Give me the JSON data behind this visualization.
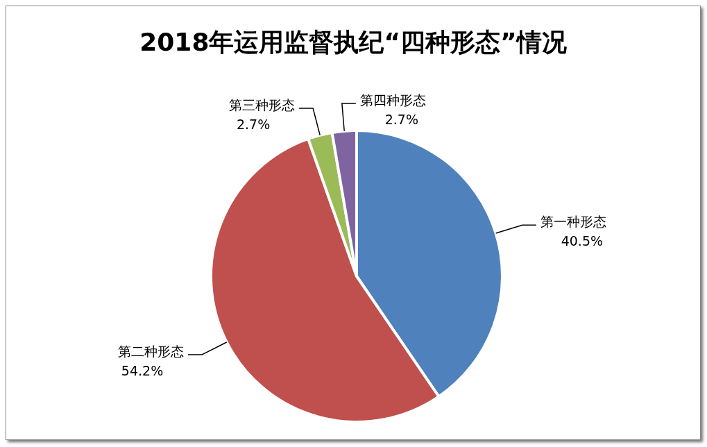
{
  "chart_data": {
    "type": "pie",
    "title": "2018年运用监督执纪“四种形态”情况",
    "categories": [
      "第一种形态",
      "第二种形态",
      "第三种形态",
      "第四种形态"
    ],
    "values": [
      40.5,
      54.2,
      2.7,
      2.7
    ],
    "value_labels": [
      "40.5%",
      "54.2%",
      "2.7%",
      "2.7%"
    ],
    "colors": [
      "#4f81bd",
      "#c0504d",
      "#9bbb59",
      "#8064a2"
    ],
    "legend": false
  }
}
